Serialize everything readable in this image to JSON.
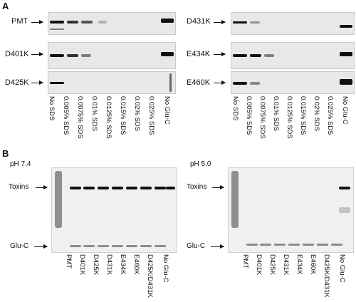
{
  "panel_a": {
    "letter": "A",
    "blots": [
      {
        "label": "PMT"
      },
      {
        "label": "D401K"
      },
      {
        "label": "D425K"
      },
      {
        "label": "D431K"
      },
      {
        "label": "E434K"
      },
      {
        "label": "E460K"
      }
    ],
    "lanes": [
      "No SDS",
      "0.005% SDS",
      "0.0075% SDS",
      "0.01% SDS",
      "0.0125% SDS",
      "0.015% SDS",
      "0.02% SDS",
      "0.025% SDS",
      "No Glu-C"
    ]
  },
  "panel_b": {
    "letter": "B",
    "left": {
      "condition": "pH 7.4",
      "markers": [
        "Toxins",
        "Glu-C"
      ],
      "lanes": [
        "PMT",
        "D401K",
        "D425K",
        "D431K",
        "E434K",
        "E460K",
        "D425K/D431K",
        "No Glu-C"
      ]
    },
    "right": {
      "condition": "pH 5.0",
      "markers": [
        "Toxins",
        "Glu-C"
      ],
      "lanes": [
        "PMT",
        "D401K",
        "D425K",
        "D431K",
        "E434K",
        "E460K",
        "D425K/D431K",
        "No Glu-C"
      ]
    }
  }
}
